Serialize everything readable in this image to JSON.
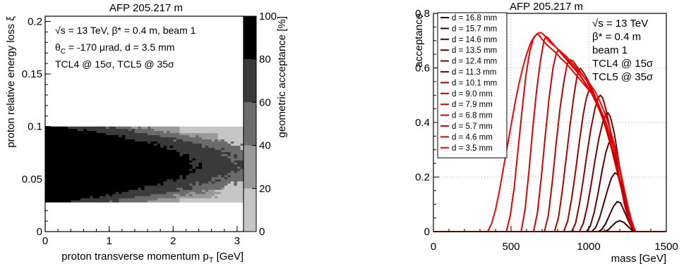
{
  "chart_data": [
    {
      "type": "heatmap",
      "title": "AFP 205.217 m",
      "xlabel": "proton transverse momentum p",
      "xlabel_sub": "T",
      "xlabel_unit": " [GeV]",
      "ylabel": "proton relative energy loss ξ",
      "colorbar_label": "geometric acceptance [%]",
      "xlim": [
        0,
        3.1
      ],
      "ylim": [
        0,
        0.205
      ],
      "x_ticks": [
        0,
        1,
        2,
        3
      ],
      "y_ticks": [
        0,
        0.05,
        0.1,
        0.15,
        0.2
      ],
      "y_tick_labels": [
        "0",
        "0.05",
        "0.1",
        "0.15",
        "0.2"
      ],
      "colorbar_ticks": [
        0,
        20,
        40,
        60,
        80,
        100
      ],
      "colorbar_range": [
        0,
        100
      ],
      "levels": [
        {
          "value": 100,
          "color": "#000000"
        },
        {
          "value": 80,
          "color": "#3a3a3a"
        },
        {
          "value": 60,
          "color": "#6b6b6b"
        },
        {
          "value": 40,
          "color": "#9a9a9a"
        },
        {
          "value": 20,
          "color": "#c6c6c6"
        }
      ],
      "annotation_lines": [
        "√s = 13 TeV, β* = 0.4 m, beam 1",
        "θ",
        "C",
        " = -170 μrad, d = 3.5 mm",
        "TCL4 @ 15σ, TCL5 @ 35σ"
      ],
      "grid": false
    },
    {
      "type": "line",
      "title": "AFP 205.217 m",
      "xlabel": "mass [GeV]",
      "ylabel": "acceptance",
      "xlim": [
        0,
        1500
      ],
      "ylim": [
        0,
        0.8
      ],
      "x_ticks": [
        0,
        500,
        1000,
        1500
      ],
      "y_ticks": [
        0,
        0.2,
        0.4,
        0.6,
        0.8
      ],
      "y_tick_labels": [
        "0",
        "0.2",
        "0.4",
        "0.6",
        "0.8"
      ],
      "legend_position": "top-left",
      "grid": true,
      "annotation_lines": [
        "√s = 13 TeV",
        "β* = 0.4 m",
        "beam 1",
        "TCL4 @ 15σ",
        "TCL5 @ 35σ"
      ],
      "series": [
        {
          "name": "d = 16.8 mm",
          "color": "#2a0000",
          "x": [
            1100,
            1125,
            1150,
            1175,
            1200,
            1225,
            1255,
            1280,
            1300
          ],
          "y": [
            0,
            0.006,
            0.02,
            0.034,
            0.04,
            0.034,
            0.018,
            0.004,
            0
          ]
        },
        {
          "name": "d = 15.7 mm",
          "color": "#3d0000",
          "x": [
            1060,
            1085,
            1110,
            1135,
            1160,
            1185,
            1205,
            1225,
            1255,
            1280,
            1300
          ],
          "y": [
            0,
            0.008,
            0.03,
            0.062,
            0.093,
            0.11,
            0.105,
            0.08,
            0.04,
            0.01,
            0
          ]
        },
        {
          "name": "d = 14.6 mm",
          "color": "#520000",
          "x": [
            1020,
            1045,
            1070,
            1095,
            1120,
            1145,
            1168,
            1185,
            1205,
            1230,
            1255,
            1280,
            1300
          ],
          "y": [
            0,
            0.015,
            0.05,
            0.1,
            0.15,
            0.195,
            0.215,
            0.21,
            0.18,
            0.13,
            0.07,
            0.02,
            0
          ]
        },
        {
          "name": "d = 13.5 mm",
          "color": "#660000",
          "x": [
            985,
            1010,
            1035,
            1060,
            1085,
            1110,
            1130,
            1150,
            1170,
            1195,
            1225,
            1255,
            1280,
            1300
          ],
          "y": [
            0,
            0.02,
            0.07,
            0.14,
            0.22,
            0.29,
            0.325,
            0.33,
            0.31,
            0.24,
            0.15,
            0.07,
            0.02,
            0
          ]
        },
        {
          "name": "d = 12.4 mm",
          "color": "#7a0000",
          "x": [
            940,
            965,
            990,
            1015,
            1040,
            1065,
            1090,
            1110,
            1125,
            1140,
            1165,
            1190,
            1220,
            1250,
            1280,
            1300
          ],
          "y": [
            0,
            0.03,
            0.09,
            0.17,
            0.26,
            0.34,
            0.4,
            0.43,
            0.435,
            0.42,
            0.36,
            0.27,
            0.16,
            0.07,
            0.015,
            0
          ]
        },
        {
          "name": "d = 11.3 mm",
          "color": "#8e0000",
          "x": [
            890,
            915,
            940,
            965,
            990,
            1015,
            1040,
            1060,
            1075,
            1090,
            1110,
            1140,
            1170,
            1200,
            1230,
            1260,
            1285,
            1300
          ],
          "y": [
            0,
            0.03,
            0.1,
            0.19,
            0.29,
            0.38,
            0.45,
            0.49,
            0.5,
            0.49,
            0.45,
            0.37,
            0.28,
            0.19,
            0.1,
            0.035,
            0.005,
            0
          ]
        },
        {
          "name": "d = 10.1 mm",
          "color": "#a00000",
          "x": [
            840,
            865,
            890,
            915,
            940,
            965,
            985,
            1000,
            1012,
            1030,
            1060,
            1090,
            1120,
            1150,
            1180,
            1210,
            1240,
            1270,
            1300
          ],
          "y": [
            0,
            0.04,
            0.12,
            0.22,
            0.33,
            0.43,
            0.49,
            0.515,
            0.52,
            0.51,
            0.47,
            0.42,
            0.36,
            0.3,
            0.23,
            0.16,
            0.09,
            0.03,
            0
          ]
        },
        {
          "name": "d = 9.0 mm",
          "color": "#b20000",
          "x": [
            780,
            805,
            830,
            855,
            880,
            905,
            925,
            938,
            948,
            970,
            1000,
            1030,
            1060,
            1090,
            1120,
            1150,
            1180,
            1210,
            1240,
            1270,
            1300
          ],
          "y": [
            0,
            0.05,
            0.15,
            0.27,
            0.39,
            0.5,
            0.57,
            0.595,
            0.598,
            0.58,
            0.55,
            0.51,
            0.47,
            0.42,
            0.36,
            0.3,
            0.23,
            0.16,
            0.09,
            0.03,
            0
          ]
        },
        {
          "name": "d = 7.9 mm",
          "color": "#c40000",
          "x": [
            715,
            740,
            765,
            790,
            815,
            840,
            860,
            872,
            882,
            900,
            930,
            960,
            990,
            1020,
            1050,
            1080,
            1110,
            1140,
            1170,
            1200,
            1230,
            1260,
            1300
          ],
          "y": [
            0,
            0.06,
            0.18,
            0.32,
            0.45,
            0.55,
            0.61,
            0.628,
            0.63,
            0.625,
            0.6,
            0.575,
            0.55,
            0.515,
            0.475,
            0.43,
            0.38,
            0.32,
            0.25,
            0.18,
            0.11,
            0.04,
            0
          ]
        },
        {
          "name": "d = 6.8 mm",
          "color": "#d20000",
          "x": [
            645,
            670,
            695,
            720,
            745,
            770,
            792,
            805,
            820,
            840,
            870,
            900,
            930,
            960,
            990,
            1020,
            1050,
            1080,
            1110,
            1140,
            1170,
            1200,
            1230,
            1260,
            1300
          ],
          "y": [
            0,
            0.07,
            0.2,
            0.35,
            0.49,
            0.6,
            0.655,
            0.665,
            0.66,
            0.645,
            0.625,
            0.605,
            0.585,
            0.56,
            0.535,
            0.505,
            0.47,
            0.43,
            0.385,
            0.33,
            0.26,
            0.19,
            0.11,
            0.04,
            0
          ]
        },
        {
          "name": "d = 5.7 mm",
          "color": "#de0000",
          "x": [
            565,
            590,
            615,
            640,
            665,
            690,
            712,
            725,
            738,
            760,
            790,
            820,
            850,
            880,
            910,
            940,
            970,
            1000,
            1030,
            1060,
            1090,
            1120,
            1150,
            1180,
            1210,
            1240,
            1270,
            1300
          ],
          "y": [
            0,
            0.08,
            0.22,
            0.38,
            0.52,
            0.63,
            0.7,
            0.715,
            0.71,
            0.695,
            0.675,
            0.655,
            0.635,
            0.615,
            0.595,
            0.575,
            0.55,
            0.525,
            0.5,
            0.465,
            0.43,
            0.385,
            0.33,
            0.27,
            0.2,
            0.12,
            0.05,
            0
          ]
        },
        {
          "name": "d = 4.6 mm",
          "color": "#e80000",
          "x": [
            470,
            495,
            520,
            545,
            570,
            595,
            620,
            645,
            668,
            680,
            700,
            730,
            760,
            790,
            820,
            850,
            880,
            910,
            940,
            970,
            1000,
            1030,
            1060,
            1090,
            1120,
            1150,
            1180,
            1210,
            1240,
            1270,
            1300
          ],
          "y": [
            0,
            0.06,
            0.16,
            0.3,
            0.44,
            0.57,
            0.66,
            0.71,
            0.725,
            0.72,
            0.705,
            0.685,
            0.67,
            0.655,
            0.635,
            0.62,
            0.6,
            0.58,
            0.56,
            0.54,
            0.52,
            0.5,
            0.47,
            0.43,
            0.385,
            0.33,
            0.27,
            0.2,
            0.12,
            0.05,
            0
          ]
        },
        {
          "name": "d = 3.5 mm",
          "color": "#ff0000",
          "x": [
            350,
            375,
            400,
            425,
            450,
            475,
            500,
            525,
            550,
            575,
            600,
            625,
            650,
            672,
            690,
            705,
            720,
            740,
            770,
            800,
            830,
            860,
            890,
            920,
            950,
            980,
            1010,
            1040,
            1070,
            1100,
            1130,
            1160,
            1190,
            1220,
            1250,
            1280,
            1300
          ],
          "y": [
            0,
            0.03,
            0.08,
            0.15,
            0.23,
            0.31,
            0.39,
            0.47,
            0.54,
            0.6,
            0.65,
            0.69,
            0.715,
            0.727,
            0.73,
            0.725,
            0.715,
            0.7,
            0.685,
            0.67,
            0.655,
            0.64,
            0.62,
            0.6,
            0.58,
            0.56,
            0.54,
            0.515,
            0.48,
            0.44,
            0.39,
            0.33,
            0.26,
            0.18,
            0.1,
            0.03,
            0
          ]
        }
      ]
    }
  ]
}
